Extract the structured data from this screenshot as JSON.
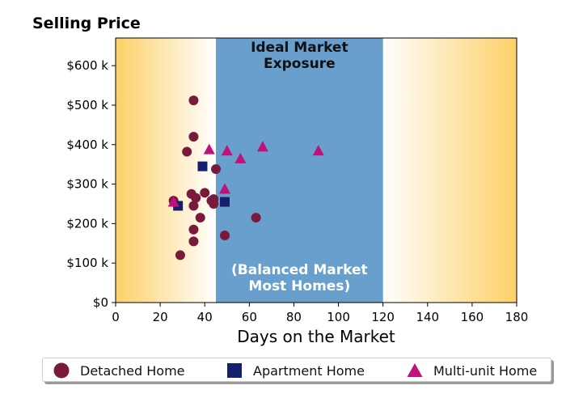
{
  "chart_data": {
    "type": "scatter",
    "title": "Selling Price",
    "xlabel": "Days on the Market",
    "ylabel": "",
    "xlim": [
      0,
      180
    ],
    "ylim": [
      0,
      670000
    ],
    "xticks": [
      0,
      20,
      40,
      60,
      80,
      100,
      120,
      140,
      160,
      180
    ],
    "yticks": [
      0,
      100000,
      200000,
      300000,
      400000,
      500000,
      600000
    ],
    "ytick_labels": [
      "$0",
      "$100 k",
      "$200 k",
      "$300 k",
      "$400 k",
      "$500 k",
      "$600 k"
    ],
    "grid": false,
    "legend_position": "bottom",
    "band": {
      "x_range": [
        45,
        120
      ],
      "label_top": "Ideal Market\nExposure",
      "label_bottom": "(Balanced Market\nMost Homes)",
      "color": "#689fcc"
    },
    "background_gradient": {
      "edge_color": "#fdd068",
      "center_color": "#ffffff"
    },
    "series": [
      {
        "name": "Detached Home",
        "marker": "circle",
        "color": "#7a1a3a",
        "points": [
          [
            35,
            512000
          ],
          [
            35,
            420000
          ],
          [
            32,
            382000
          ],
          [
            45,
            338000
          ],
          [
            26,
            258000
          ],
          [
            34,
            275000
          ],
          [
            36,
            265000
          ],
          [
            40,
            278000
          ],
          [
            43,
            258000
          ],
          [
            44,
            262000
          ],
          [
            44,
            250000
          ],
          [
            35,
            245000
          ],
          [
            38,
            215000
          ],
          [
            35,
            185000
          ],
          [
            35,
            155000
          ],
          [
            29,
            120000
          ],
          [
            49,
            170000
          ],
          [
            63,
            215000
          ]
        ]
      },
      {
        "name": "Apartment Home",
        "marker": "square",
        "color": "#14206e",
        "points": [
          [
            28,
            245000
          ],
          [
            39,
            345000
          ],
          [
            49,
            255000
          ]
        ]
      },
      {
        "name": "Multi-unit Home",
        "marker": "triangle",
        "color": "#c0127a",
        "points": [
          [
            26,
            255000
          ],
          [
            42,
            388000
          ],
          [
            50,
            385000
          ],
          [
            56,
            365000
          ],
          [
            49,
            288000
          ],
          [
            66,
            395000
          ],
          [
            91,
            385000
          ]
        ]
      }
    ]
  }
}
